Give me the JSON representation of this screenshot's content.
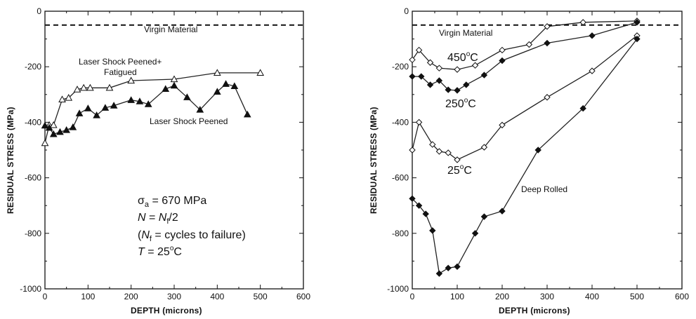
{
  "chart_data": [
    {
      "type": "line",
      "title": "",
      "xlabel": "DEPTH (microns)",
      "ylabel": "RESIDUAL STRESS (MPa)",
      "xlim": [
        0,
        600
      ],
      "ylim": [
        -1000,
        0
      ],
      "x_ticks": [
        "0",
        "100",
        "200",
        "300",
        "400",
        "500",
        "600"
      ],
      "y_ticks": [
        "0",
        "-200",
        "-400",
        "-600",
        "-800",
        "-1000"
      ],
      "grid": false,
      "reference_line": {
        "label": "Virgin Material",
        "y": -50,
        "style": "dashed"
      },
      "series": [
        {
          "name": "Laser Shock Peened+\nFatigued",
          "marker": "open-triangle",
          "points": [
            [
              0,
              -475
            ],
            [
              10,
              -410
            ],
            [
              20,
              -410
            ],
            [
              40,
              -318
            ],
            [
              55,
              -312
            ],
            [
              75,
              -282
            ],
            [
              90,
              -276
            ],
            [
              105,
              -276
            ],
            [
              150,
              -276
            ],
            [
              200,
              -250
            ],
            [
              300,
              -245
            ],
            [
              400,
              -222
            ],
            [
              500,
              -222
            ]
          ]
        },
        {
          "name": "Laser Shock Peened",
          "marker": "filled-triangle",
          "points": [
            [
              0,
              -412
            ],
            [
              10,
              -420
            ],
            [
              20,
              -443
            ],
            [
              35,
              -435
            ],
            [
              50,
              -428
            ],
            [
              65,
              -418
            ],
            [
              80,
              -368
            ],
            [
              100,
              -350
            ],
            [
              120,
              -375
            ],
            [
              140,
              -348
            ],
            [
              160,
              -340
            ],
            [
              200,
              -320
            ],
            [
              220,
              -325
            ],
            [
              240,
              -335
            ],
            [
              280,
              -280
            ],
            [
              300,
              -268
            ],
            [
              330,
              -310
            ],
            [
              360,
              -355
            ],
            [
              400,
              -290
            ],
            [
              420,
              -262
            ],
            [
              440,
              -270
            ],
            [
              470,
              -372
            ]
          ]
        }
      ],
      "annotations": [
        "σa = 670 MPa",
        "N = Nf/2",
        "(Nf = cycles to failure)",
        "T = 25°C"
      ]
    },
    {
      "type": "line",
      "title": "",
      "xlabel": "DEPTH (microns)",
      "ylabel": "RESIDUAL STRESS (MPa)",
      "xlim": [
        0,
        600
      ],
      "ylim": [
        -1000,
        0
      ],
      "x_ticks": [
        "0",
        "100",
        "200",
        "300",
        "400",
        "500",
        "600"
      ],
      "y_ticks": [
        "0",
        "-200",
        "-400",
        "-600",
        "-800",
        "-1000"
      ],
      "grid": false,
      "reference_line": {
        "label": "Virgin Material",
        "y": -50,
        "style": "dashed"
      },
      "series": [
        {
          "name": "450°C",
          "marker": "open-diamond",
          "points": [
            [
              0,
              -175
            ],
            [
              15,
              -140
            ],
            [
              40,
              -185
            ],
            [
              60,
              -205
            ],
            [
              100,
              -210
            ],
            [
              140,
              -195
            ],
            [
              200,
              -140
            ],
            [
              260,
              -120
            ],
            [
              300,
              -55
            ],
            [
              380,
              -40
            ],
            [
              500,
              -35
            ]
          ]
        },
        {
          "name": "250°C",
          "marker": "filled-diamond",
          "points": [
            [
              0,
              -235
            ],
            [
              20,
              -235
            ],
            [
              40,
              -265
            ],
            [
              60,
              -250
            ],
            [
              80,
              -283
            ],
            [
              100,
              -285
            ],
            [
              120,
              -265
            ],
            [
              160,
              -230
            ],
            [
              200,
              -178
            ],
            [
              300,
              -115
            ],
            [
              400,
              -88
            ],
            [
              500,
              -40
            ]
          ]
        },
        {
          "name": "25°C",
          "marker": "open-diamond",
          "points": [
            [
              0,
              -500
            ],
            [
              15,
              -400
            ],
            [
              45,
              -480
            ],
            [
              60,
              -505
            ],
            [
              80,
              -510
            ],
            [
              100,
              -535
            ],
            [
              160,
              -490
            ],
            [
              200,
              -410
            ],
            [
              300,
              -310
            ],
            [
              400,
              -215
            ],
            [
              500,
              -88
            ]
          ]
        },
        {
          "name": "Deep Rolled",
          "marker": "filled-diamond",
          "points": [
            [
              0,
              -675
            ],
            [
              15,
              -700
            ],
            [
              30,
              -730
            ],
            [
              45,
              -790
            ],
            [
              60,
              -945
            ],
            [
              80,
              -925
            ],
            [
              100,
              -920
            ],
            [
              140,
              -800
            ],
            [
              160,
              -740
            ],
            [
              200,
              -720
            ],
            [
              280,
              -500
            ],
            [
              380,
              -350
            ],
            [
              500,
              -100
            ]
          ]
        }
      ]
    }
  ],
  "labels": {
    "left": {
      "virgin": "Virgin Material",
      "lsp_fatigued_1": "Laser Shock Peened+",
      "lsp_fatigued_2": "Fatigued",
      "lsp": "Laser Shock Peened"
    },
    "right": {
      "virgin": "Virgin Material",
      "t450": "450",
      "t250": "250",
      "t25": "25",
      "deg": "o",
      "c": "C",
      "deep": "Deep Rolled"
    }
  }
}
